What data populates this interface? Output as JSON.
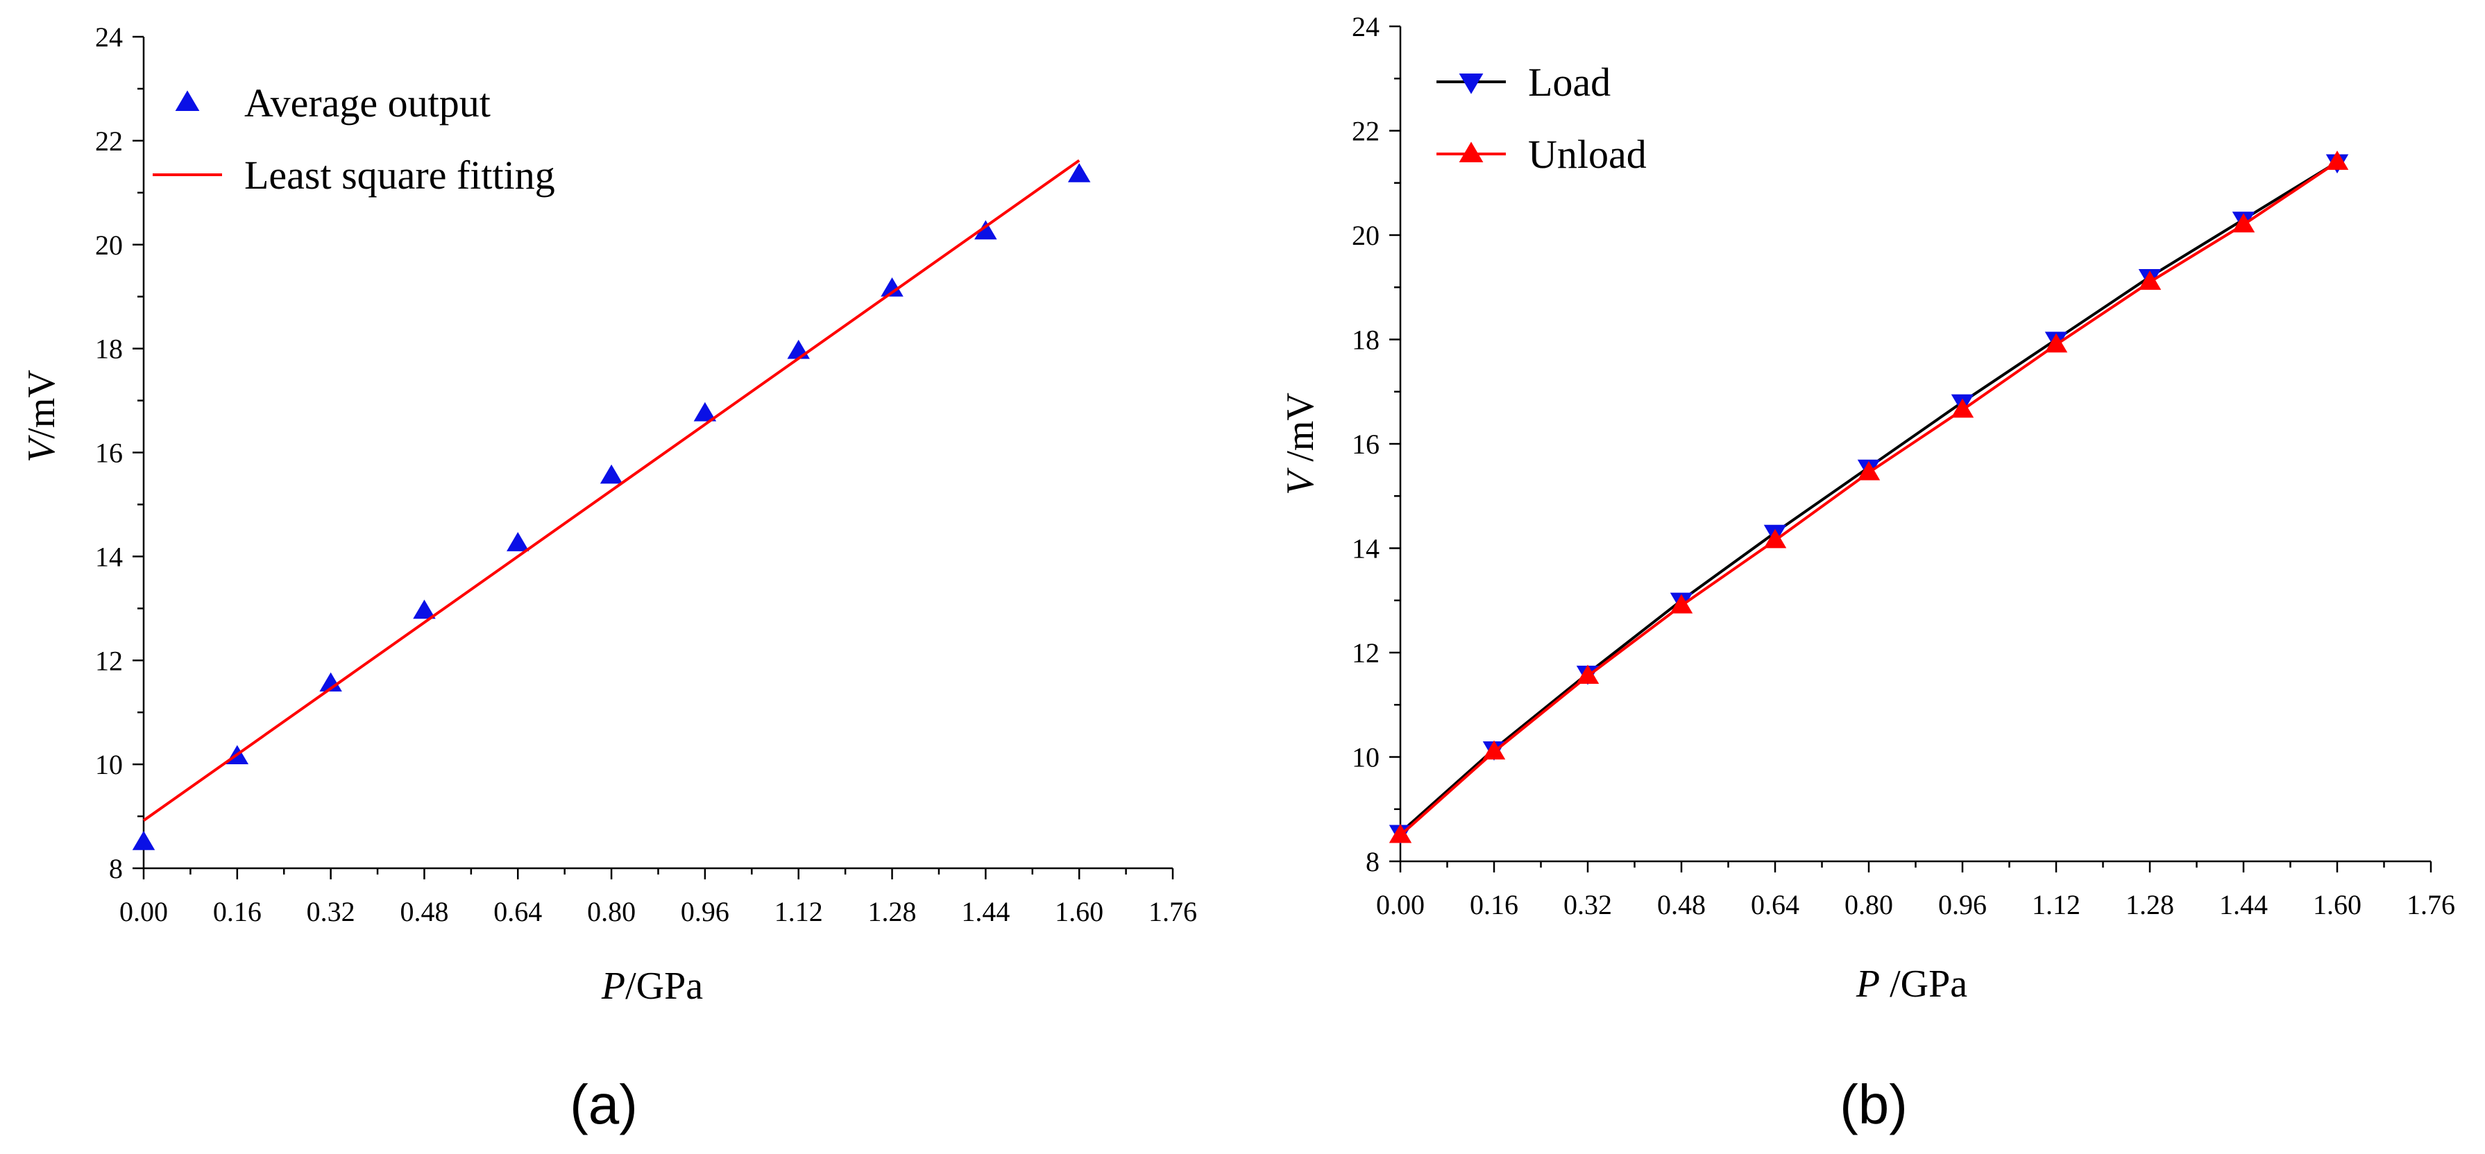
{
  "chart_data": [
    {
      "panel_label": "(a)",
      "type": "scatter",
      "xlabel": "P/GPa",
      "xlabel_italic": "P",
      "xlabel_unit": "/GPa",
      "ylabel": "V/mV",
      "ylabel_italic": "V",
      "ylabel_unit": "/mV",
      "xlim": [
        0,
        1.76
      ],
      "ylim": [
        8,
        24
      ],
      "xticks": [
        "0.00",
        "0.16",
        "0.32",
        "0.48",
        "0.64",
        "0.80",
        "0.96",
        "1.12",
        "1.28",
        "1.44",
        "1.60",
        "1.76"
      ],
      "yticks": [
        "8",
        "10",
        "12",
        "14",
        "16",
        "18",
        "20",
        "22",
        "24"
      ],
      "legend_position": "top-left",
      "series": [
        {
          "name": "Average output",
          "kind": "marker",
          "marker": "triangle-up",
          "color": "#0a10e6",
          "x": [
            0.0,
            0.16,
            0.32,
            0.48,
            0.64,
            0.8,
            0.96,
            1.12,
            1.28,
            1.44,
            1.6
          ],
          "y": [
            8.5,
            10.15,
            11.55,
            12.95,
            14.25,
            15.55,
            16.75,
            17.95,
            19.15,
            20.25,
            21.35
          ]
        },
        {
          "name": "Least square fitting",
          "kind": "line",
          "color": "#ff0000",
          "x": [
            0.0,
            1.6
          ],
          "y": [
            8.92,
            21.62
          ]
        }
      ]
    },
    {
      "panel_label": "(b)",
      "type": "line",
      "xlabel": "P /GPa",
      "xlabel_italic": "P",
      "xlabel_unit": " /GPa",
      "ylabel": "V /mV",
      "ylabel_italic": "V",
      "ylabel_unit": " /mV",
      "xlim": [
        0,
        1.76
      ],
      "ylim": [
        8,
        24
      ],
      "xticks": [
        "0.00",
        "0.16",
        "0.32",
        "0.48",
        "0.64",
        "0.80",
        "0.96",
        "1.12",
        "1.28",
        "1.44",
        "1.60",
        "1.76"
      ],
      "yticks": [
        "8",
        "10",
        "12",
        "14",
        "16",
        "18",
        "20",
        "22",
        "24"
      ],
      "legend_position": "top-left",
      "series": [
        {
          "name": "Load",
          "kind": "line+marker",
          "marker": "triangle-down",
          "line_color": "#000000",
          "marker_color": "#0a10e6",
          "x": [
            0.0,
            0.16,
            0.32,
            0.48,
            0.64,
            0.8,
            0.96,
            1.12,
            1.28,
            1.44,
            1.6
          ],
          "y": [
            8.55,
            10.15,
            11.6,
            13.0,
            14.3,
            15.55,
            16.8,
            18.0,
            19.2,
            20.3,
            21.4
          ]
        },
        {
          "name": "Unload",
          "kind": "line+marker",
          "marker": "triangle-up",
          "line_color": "#ff0000",
          "marker_color": "#ff0000",
          "x": [
            0.0,
            0.16,
            0.32,
            0.48,
            0.64,
            0.8,
            0.96,
            1.12,
            1.28,
            1.44,
            1.6
          ],
          "y": [
            8.5,
            10.1,
            11.55,
            12.9,
            14.15,
            15.45,
            16.65,
            17.9,
            19.1,
            20.2,
            21.4
          ]
        }
      ]
    }
  ]
}
